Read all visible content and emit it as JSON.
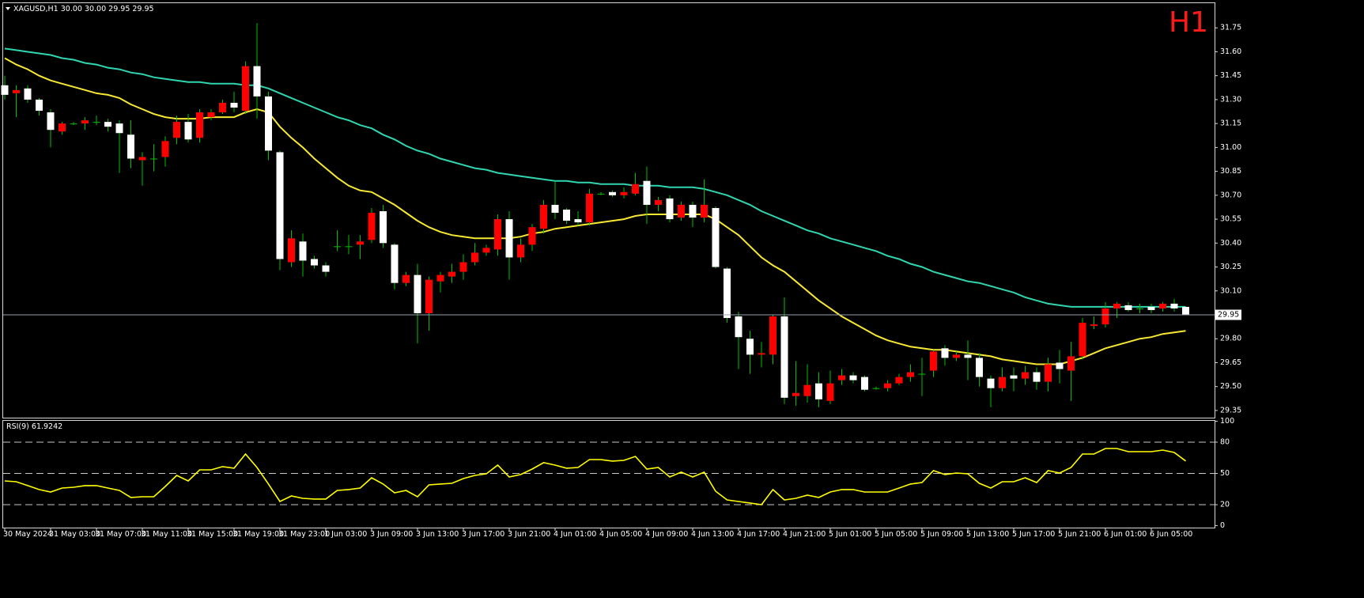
{
  "chart_data": [
    {
      "type": "candlestick",
      "title": "XAGUSD,H1  30.00 30.00 29.95 29.95",
      "badge": "H1",
      "categories": [
        "30 May 2024",
        null,
        null,
        null,
        "31 May 03:00",
        null,
        null,
        null,
        "31 May 07:00",
        null,
        null,
        null,
        "31 May 11:00",
        null,
        null,
        null,
        "31 May 15:00",
        null,
        null,
        null,
        "31 May 19:00",
        null,
        null,
        null,
        "31 May 23:00",
        null,
        null,
        null,
        "1 Jun 03:00",
        null,
        null,
        null,
        "3 Jun 09:00",
        null,
        null,
        null,
        "3 Jun 13:00",
        null,
        null,
        null,
        "3 Jun 17:00",
        null,
        null,
        null,
        "3 Jun 21:00",
        null,
        null,
        null,
        "4 Jun 01:00",
        null,
        null,
        null,
        "4 Jun 05:00",
        null,
        null,
        null,
        "4 Jun 09:00",
        null,
        null,
        null,
        "4 Jun 13:00",
        null,
        null,
        null,
        "4 Jun 17:00",
        null,
        null,
        null,
        "4 Jun 21:00",
        null,
        null,
        null,
        "5 Jun 01:00",
        null,
        null,
        null,
        "5 Jun 05:00",
        null,
        null,
        null,
        "5 Jun 09:00",
        null,
        null,
        null,
        "5 Jun 13:00",
        null,
        null,
        null,
        "5 Jun 17:00",
        null,
        null,
        null,
        "5 Jun 21:00",
        null,
        null,
        null,
        "6 Jun 01:00",
        null,
        null,
        null,
        "6 Jun 05:00",
        null,
        null,
        null
      ],
      "open": [
        31.39,
        31.34,
        31.37,
        31.3,
        31.22,
        31.1,
        31.15,
        31.15,
        31.16,
        31.16,
        31.15,
        31.08,
        30.92,
        30.93,
        30.94,
        31.06,
        31.16,
        31.06,
        31.19,
        31.22,
        31.28,
        31.23,
        31.51,
        31.32,
        30.97,
        30.28,
        30.41,
        30.3,
        30.26,
        30.38,
        30.38,
        30.39,
        30.42,
        30.6,
        30.39,
        30.15,
        30.2,
        29.96,
        30.16,
        30.19,
        30.22,
        30.28,
        30.34,
        30.36,
        30.55,
        30.31,
        30.39,
        30.49,
        30.64,
        30.61,
        30.55,
        30.53,
        30.71,
        30.72,
        30.7,
        30.71,
        30.79,
        30.64,
        30.68,
        30.56,
        30.64,
        30.56,
        30.62,
        30.24,
        29.94,
        29.8,
        29.7,
        29.7,
        29.94,
        29.44,
        29.44,
        29.52,
        29.41,
        29.54,
        29.57,
        29.56,
        29.49,
        29.49,
        29.52,
        29.56,
        29.58,
        29.6,
        29.74,
        29.68,
        29.7,
        29.68,
        29.55,
        29.49,
        29.57,
        29.55,
        29.59,
        29.53,
        29.65,
        29.6,
        29.69,
        29.88,
        29.89,
        29.99,
        30.01,
        29.99,
        30.0,
        29.99,
        30.02,
        30.0
      ],
      "high": [
        31.45,
        31.39,
        31.39,
        31.31,
        31.24,
        31.16,
        31.16,
        31.19,
        31.2,
        31.18,
        31.17,
        31.17,
        30.97,
        31.02,
        31.07,
        31.2,
        31.21,
        31.24,
        31.24,
        31.3,
        31.35,
        31.54,
        31.78,
        31.35,
        30.98,
        30.48,
        30.46,
        30.32,
        30.28,
        30.48,
        30.45,
        30.45,
        30.62,
        30.64,
        30.4,
        30.22,
        30.27,
        30.19,
        30.22,
        30.27,
        30.33,
        30.4,
        30.39,
        30.58,
        30.6,
        30.43,
        30.52,
        30.67,
        30.79,
        30.62,
        30.6,
        30.74,
        30.72,
        30.73,
        30.75,
        30.84,
        30.88,
        30.69,
        30.7,
        30.66,
        30.66,
        30.8,
        30.63,
        30.25,
        29.97,
        29.85,
        29.78,
        29.95,
        30.06,
        29.66,
        29.64,
        29.59,
        29.6,
        29.61,
        29.59,
        29.57,
        29.5,
        29.54,
        29.58,
        29.64,
        29.68,
        29.73,
        29.76,
        29.72,
        29.79,
        29.71,
        29.57,
        29.62,
        29.62,
        29.63,
        29.62,
        29.68,
        29.73,
        29.78,
        29.93,
        29.94,
        30.03,
        30.03,
        30.03,
        30.02,
        30.02,
        30.03,
        30.05,
        30.0
      ],
      "low": [
        31.3,
        31.19,
        31.28,
        31.2,
        31.0,
        31.08,
        31.14,
        31.11,
        31.14,
        31.1,
        30.84,
        30.87,
        30.76,
        30.85,
        30.88,
        31.02,
        31.03,
        31.03,
        31.17,
        31.21,
        31.22,
        31.21,
        31.18,
        30.92,
        30.23,
        30.25,
        30.19,
        30.24,
        30.19,
        30.35,
        30.33,
        30.3,
        30.4,
        30.37,
        30.11,
        30.13,
        29.77,
        29.85,
        30.09,
        30.15,
        30.17,
        30.26,
        30.32,
        30.32,
        30.17,
        30.28,
        30.35,
        30.46,
        30.55,
        30.52,
        30.51,
        30.51,
        30.7,
        30.69,
        30.68,
        30.7,
        30.52,
        30.6,
        30.53,
        30.54,
        30.5,
        30.53,
        30.24,
        29.9,
        29.61,
        29.58,
        29.62,
        29.64,
        29.39,
        29.38,
        29.4,
        29.37,
        29.39,
        29.51,
        29.52,
        29.47,
        29.48,
        29.47,
        29.51,
        29.53,
        29.44,
        29.56,
        29.63,
        29.66,
        29.54,
        29.5,
        29.37,
        29.47,
        29.47,
        29.51,
        29.48,
        29.47,
        29.52,
        29.41,
        29.67,
        29.86,
        29.87,
        29.93,
        29.97,
        29.96,
        29.96,
        29.97,
        29.97,
        29.95
      ],
      "close": [
        31.33,
        31.36,
        31.3,
        31.23,
        31.11,
        31.15,
        31.15,
        31.17,
        31.16,
        31.13,
        31.09,
        30.93,
        30.94,
        30.93,
        31.04,
        31.16,
        31.05,
        31.22,
        31.22,
        31.28,
        31.25,
        31.51,
        31.32,
        30.98,
        30.3,
        30.43,
        30.29,
        30.26,
        30.22,
        30.38,
        30.38,
        30.41,
        30.59,
        30.4,
        30.15,
        30.2,
        29.96,
        30.17,
        30.2,
        30.22,
        30.28,
        30.34,
        30.37,
        30.55,
        30.31,
        30.39,
        30.5,
        30.64,
        30.59,
        30.54,
        30.53,
        30.71,
        30.71,
        30.7,
        30.72,
        30.77,
        30.64,
        30.67,
        30.55,
        30.64,
        30.56,
        30.64,
        30.25,
        29.93,
        29.81,
        29.7,
        29.71,
        29.94,
        29.43,
        29.46,
        29.51,
        29.42,
        29.52,
        29.57,
        29.54,
        29.48,
        29.49,
        29.52,
        29.56,
        29.59,
        29.58,
        29.72,
        29.68,
        29.7,
        29.68,
        29.56,
        29.49,
        29.56,
        29.55,
        29.59,
        29.53,
        29.64,
        29.61,
        29.69,
        29.9,
        29.89,
        29.99,
        30.02,
        29.98,
        29.99,
        29.98,
        30.02,
        29.99,
        29.95
      ],
      "up_color": "#ff0000",
      "down_color": "#ffffff",
      "wick_color": "#00c000",
      "lines": [
        {
          "color": "#2fd6b0",
          "values": [
            31.62,
            31.61,
            31.6,
            31.59,
            31.58,
            31.56,
            31.55,
            31.53,
            31.52,
            31.5,
            31.49,
            31.47,
            31.46,
            31.44,
            31.43,
            31.42,
            31.41,
            31.41,
            31.4,
            31.4,
            31.4,
            31.39,
            31.39,
            31.37,
            31.34,
            31.31,
            31.28,
            31.25,
            31.22,
            31.19,
            31.17,
            31.14,
            31.12,
            31.08,
            31.05,
            31.01,
            30.98,
            30.96,
            30.93,
            30.91,
            30.89,
            30.87,
            30.86,
            30.84,
            30.83,
            30.82,
            30.81,
            30.8,
            30.79,
            30.79,
            30.78,
            30.78,
            30.77,
            30.77,
            30.77,
            30.76,
            30.76,
            30.76,
            30.75,
            30.75,
            30.75,
            30.74,
            30.72,
            30.7,
            30.67,
            30.64,
            30.6,
            30.57,
            30.54,
            30.51,
            30.48,
            30.46,
            30.43,
            30.41,
            30.39,
            30.37,
            30.35,
            30.32,
            30.3,
            30.27,
            30.25,
            30.22,
            30.2,
            30.18,
            30.16,
            30.15,
            30.13,
            30.11,
            30.09,
            30.06,
            30.04,
            30.02,
            30.01,
            30.0,
            30.0,
            30.0,
            30.0,
            30.0,
            30.0,
            30.0,
            30.0,
            30.0,
            30.0,
            30.0
          ]
        },
        {
          "color": "#f7e832",
          "values": [
            31.56,
            31.52,
            31.49,
            31.45,
            31.42,
            31.4,
            31.38,
            31.36,
            31.34,
            31.33,
            31.31,
            31.27,
            31.24,
            31.21,
            31.19,
            31.18,
            31.18,
            31.18,
            31.19,
            31.19,
            31.19,
            31.22,
            31.24,
            31.22,
            31.13,
            31.06,
            31.0,
            30.93,
            30.87,
            30.81,
            30.76,
            30.73,
            30.72,
            30.68,
            30.64,
            30.59,
            30.54,
            30.5,
            30.47,
            30.45,
            30.44,
            30.43,
            30.43,
            30.43,
            30.43,
            30.44,
            30.46,
            30.47,
            30.49,
            30.5,
            30.51,
            30.52,
            30.53,
            30.54,
            30.55,
            30.57,
            30.58,
            30.58,
            30.58,
            30.58,
            30.58,
            30.58,
            30.55,
            30.5,
            30.45,
            30.38,
            30.31,
            30.26,
            30.22,
            30.16,
            30.1,
            30.04,
            29.99,
            29.94,
            29.9,
            29.86,
            29.82,
            29.79,
            29.77,
            29.75,
            29.74,
            29.73,
            29.73,
            29.72,
            29.71,
            29.7,
            29.69,
            29.67,
            29.66,
            29.65,
            29.64,
            29.64,
            29.64,
            29.66,
            29.68,
            29.71,
            29.74,
            29.76,
            29.78,
            29.8,
            29.81,
            29.83,
            29.84,
            29.85
          ]
        }
      ],
      "last_price": 29.95,
      "last_price_color": "#8fa0b0",
      "ylim": [
        29.3,
        31.9
      ],
      "yticks": [
        31.75,
        {
          "value": 31.6,
          "label": "31.60"
        },
        31.45,
        {
          "value": 31.3,
          "label": "31.30"
        },
        31.15,
        {
          "value": 31.0,
          "label": "31.00"
        },
        30.85,
        {
          "value": 30.7,
          "label": "30.70"
        },
        30.55,
        {
          "value": 30.4,
          "label": "30.40"
        },
        30.25,
        {
          "value": 30.1,
          "label": "30.10"
        },
        {
          "value": 29.8,
          "label": "29.80"
        },
        29.65,
        {
          "value": 29.5,
          "label": "29.50"
        },
        29.35
      ]
    },
    {
      "type": "line",
      "title": "RSI(9) 61.9242",
      "color": "#ffff00",
      "values": [
        42.8,
        42.0,
        38.3,
        34.5,
        32.2,
        36.0,
        36.7,
        38.3,
        38.3,
        36.0,
        33.7,
        26.9,
        27.6,
        27.6,
        37.5,
        48.1,
        42.8,
        53.4,
        53.4,
        56.5,
        55.0,
        68.6,
        55.7,
        39.8,
        23.1,
        28.4,
        26.1,
        25.4,
        25.4,
        33.7,
        34.5,
        36.0,
        45.8,
        39.8,
        31.4,
        33.7,
        27.6,
        39.0,
        39.8,
        40.5,
        45.1,
        48.1,
        49.6,
        58.0,
        46.6,
        48.9,
        54.2,
        60.3,
        58.0,
        55.0,
        55.7,
        63.3,
        63.3,
        61.8,
        62.5,
        66.3,
        54.2,
        55.7,
        46.6,
        51.2,
        46.6,
        51.2,
        32.9,
        24.6,
        23.1,
        21.6,
        20.0,
        34.5,
        24.6,
        26.1,
        29.1,
        26.9,
        32.2,
        34.5,
        34.5,
        32.2,
        32.2,
        32.2,
        36.0,
        39.8,
        41.3,
        52.7,
        48.9,
        50.4,
        49.6,
        40.5,
        36.0,
        42.0,
        42.0,
        45.8,
        41.3,
        52.7,
        50.4,
        55.7,
        68.6,
        68.6,
        73.9,
        73.9,
        70.9,
        70.9,
        70.9,
        72.4,
        70.1,
        61.92
      ],
      "levels": [
        80,
        50,
        20
      ],
      "ylim": [
        0,
        100
      ],
      "yticks": [
        100,
        80,
        50,
        20,
        0
      ]
    }
  ]
}
